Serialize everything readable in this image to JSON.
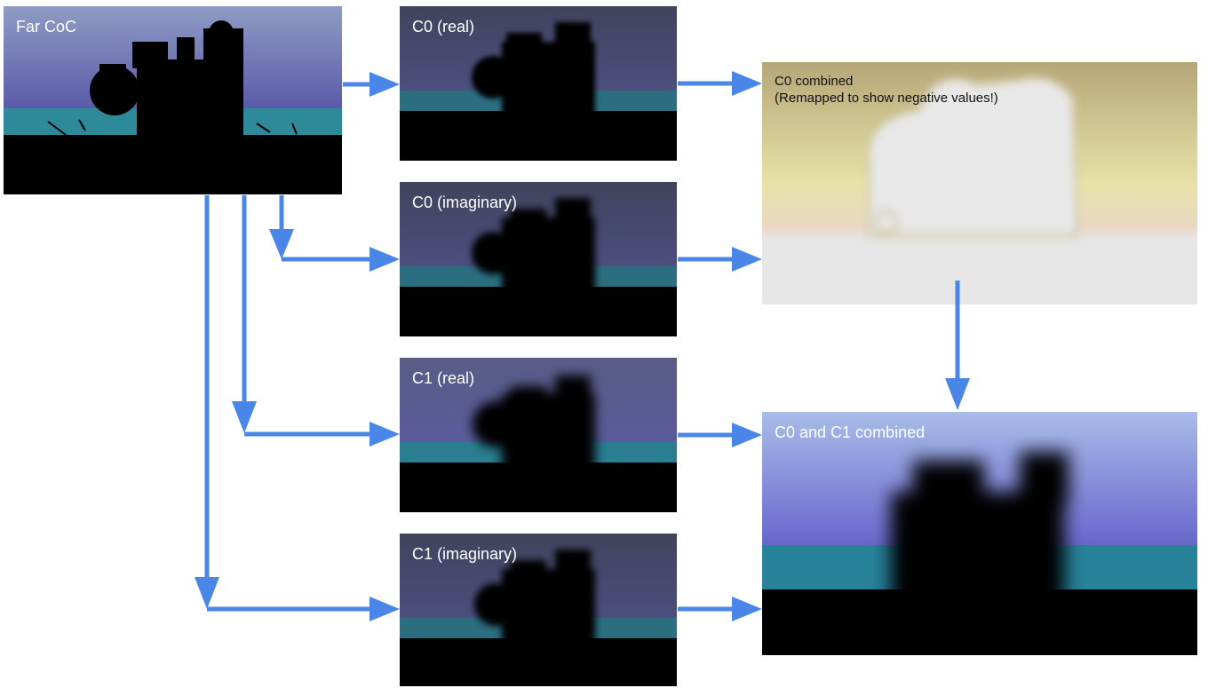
{
  "panels": {
    "far_coc": {
      "label": "Far CoC"
    },
    "c0_real": {
      "label": "C0 (real)"
    },
    "c0_imag": {
      "label": "C0 (imaginary)"
    },
    "c1_real": {
      "label": "C1 (real)"
    },
    "c1_imag": {
      "label": "C1 (imaginary)"
    },
    "c0_combined": {
      "label": "C0 combined",
      "note": "(Remapped to show negative values!)"
    },
    "c0_c1_combined": {
      "label": "C0 and C1 combined"
    }
  },
  "colors": {
    "arrow": "#4a86e8",
    "sky_top": "#8c98c8",
    "sky_bottom": "#4a4a9a",
    "water": "#2a8a9a",
    "ground": "#000000",
    "remap_top": "#b8a878",
    "remap_mid": "#e8e4a8",
    "remap_bottom": "#e6e6e6"
  }
}
